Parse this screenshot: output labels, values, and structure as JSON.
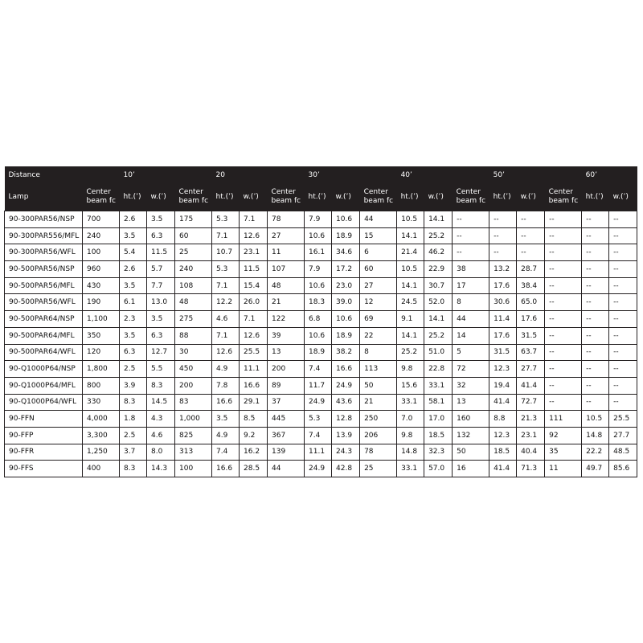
{
  "table": {
    "header": {
      "distance_label": "Distance",
      "distances": [
        "10’",
        "20",
        "30’",
        "40’",
        "50’",
        "60’"
      ],
      "lamp_label": "Lamp",
      "sub_headers": [
        "Center beam fc",
        "ht.(’)",
        "w.(’)"
      ]
    },
    "rows": [
      [
        "90-300PAR56/NSP",
        "700",
        "2.6",
        "3.5",
        "175",
        "5.3",
        "7.1",
        "78",
        "7.9",
        "10.6",
        "44",
        "10.5",
        "14.1",
        "--",
        "--",
        "--",
        "--",
        "--",
        "--"
      ],
      [
        "90-300PAR556/MFL",
        "240",
        "3.5",
        "6.3",
        "60",
        "7.1",
        "12.6",
        "27",
        "10.6",
        "18.9",
        "15",
        "14.1",
        "25.2",
        "--",
        "--",
        "--",
        "--",
        "--",
        "--"
      ],
      [
        "90-300PAR56/WFL",
        "100",
        "5.4",
        "11.5",
        "25",
        "10.7",
        "23.1",
        "11",
        "16.1",
        "34.6",
        "6",
        "21.4",
        "46.2",
        "--",
        "--",
        "--",
        "--",
        "--",
        "--"
      ],
      [
        "90-500PAR56/NSP",
        "960",
        "2.6",
        "5.7",
        "240",
        "5.3",
        "11.5",
        "107",
        "7.9",
        "17.2",
        "60",
        "10.5",
        "22.9",
        "38",
        "13.2",
        "28.7",
        "--",
        "--",
        "--"
      ],
      [
        "90-500PAR56/MFL",
        "430",
        "3.5",
        "7.7",
        "108",
        "7.1",
        "15.4",
        "48",
        "10.6",
        "23.0",
        "27",
        "14.1",
        "30.7",
        "17",
        "17.6",
        "38.4",
        "--",
        "--",
        "--"
      ],
      [
        "90-500PAR56/WFL",
        "190",
        "6.1",
        "13.0",
        "48",
        "12.2",
        "26.0",
        "21",
        "18.3",
        "39.0",
        "12",
        "24.5",
        "52.0",
        "8",
        "30.6",
        "65.0",
        "--",
        "--",
        "--"
      ],
      [
        "90-500PAR64/NSP",
        "1,100",
        "2.3",
        "3.5",
        "275",
        "4.6",
        "7.1",
        "122",
        "6.8",
        "10.6",
        "69",
        "9.1",
        "14.1",
        "44",
        "11.4",
        "17.6",
        "--",
        "--",
        "--"
      ],
      [
        "90-500PAR64/MFL",
        "350",
        "3.5",
        "6.3",
        "88",
        "7.1",
        "12.6",
        "39",
        "10.6",
        "18.9",
        "22",
        "14.1",
        "25.2",
        "14",
        "17.6",
        "31.5",
        "--",
        "--",
        "--"
      ],
      [
        "90-500PAR64/WFL",
        "120",
        "6.3",
        "12.7",
        "30",
        "12.6",
        "25.5",
        "13",
        "18.9",
        "38.2",
        "8",
        "25.2",
        "51.0",
        "5",
        "31.5",
        "63.7",
        "--",
        "--",
        "--"
      ],
      [
        "90-Q1000P64/NSP",
        "1,800",
        "2.5",
        "5.5",
        "450",
        "4.9",
        "11.1",
        "200",
        "7.4",
        "16.6",
        "113",
        "9.8",
        "22.8",
        "72",
        "12.3",
        "27.7",
        "--",
        "--",
        "--"
      ],
      [
        "90-Q1000P64/MFL",
        "800",
        "3.9",
        "8.3",
        "200",
        "7.8",
        "16.6",
        "89",
        "11.7",
        "24.9",
        "50",
        "15.6",
        "33.1",
        "32",
        "19.4",
        "41.4",
        "--",
        "--",
        "--"
      ],
      [
        "90-Q1000P64/WFL",
        "330",
        "8.3",
        "14.5",
        "83",
        "16.6",
        "29.1",
        "37",
        "24.9",
        "43.6",
        "21",
        "33.1",
        "58.1",
        "13",
        "41.4",
        "72.7",
        "--",
        "--",
        "--"
      ],
      [
        "90-FFN",
        "4,000",
        "1.8",
        "4.3",
        "1,000",
        "3.5",
        "8.5",
        "445",
        "5.3",
        "12.8",
        "250",
        "7.0",
        "17.0",
        "160",
        "8.8",
        "21.3",
        "111",
        "10.5",
        "25.5"
      ],
      [
        "90-FFP",
        "3,300",
        "2.5",
        "4.6",
        "825",
        "4.9",
        "9.2",
        "367",
        "7.4",
        "13.9",
        "206",
        "9.8",
        "18.5",
        "132",
        "12.3",
        "23.1",
        "92",
        "14.8",
        "27.7"
      ],
      [
        "90-FFR",
        "1,250",
        "3.7",
        "8.0",
        "313",
        "7.4",
        "16.2",
        "139",
        "11.1",
        "24.3",
        "78",
        "14.8",
        "32.3",
        "50",
        "18.5",
        "40.4",
        "35",
        "22.2",
        "48.5"
      ],
      [
        "90-FFS",
        "400",
        "8.3",
        "14.3",
        "100",
        "16.6",
        "28.5",
        "44",
        "24.9",
        "42.8",
        "25",
        "33.1",
        "57.0",
        "16",
        "41.4",
        "71.3",
        "11",
        "49.7",
        "85.6"
      ]
    ]
  }
}
